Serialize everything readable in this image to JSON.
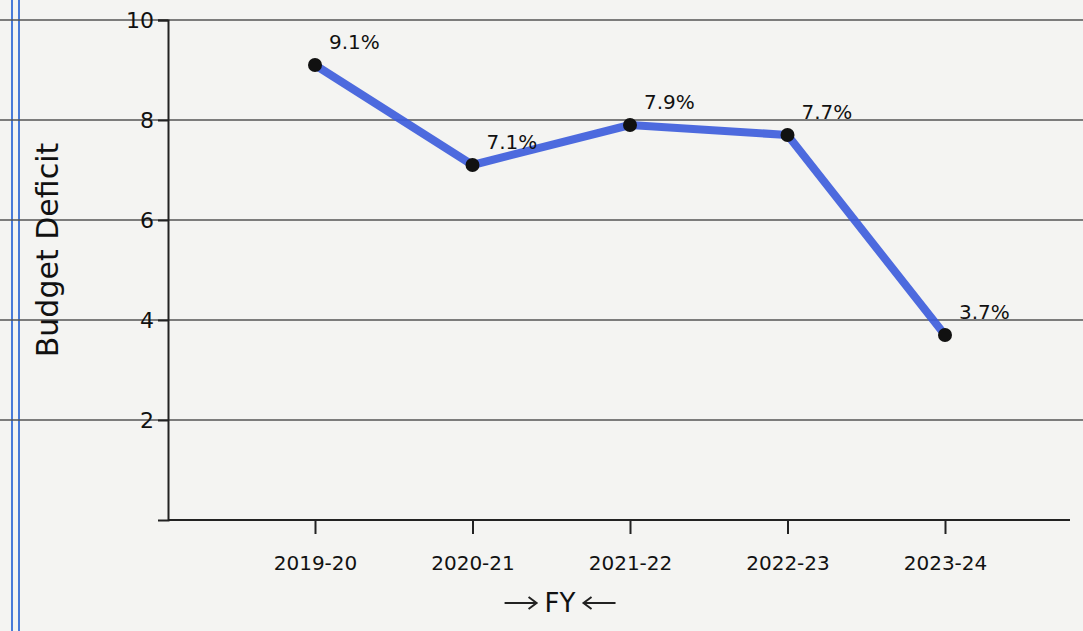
{
  "chart_data": {
    "type": "line",
    "y_label": "Budget Deficit",
    "x_label": "FY",
    "categories": [
      "2019-20",
      "2020-21",
      "2021-22",
      "2022-23",
      "2023-24"
    ],
    "values": [
      9.1,
      7.1,
      7.9,
      7.7,
      3.7
    ],
    "value_labels": [
      "9.1%",
      "7.1%",
      "7.9%",
      "7.7%",
      "3.7%"
    ],
    "color": "#3b5bdb",
    "marker": "circle",
    "ylim": [
      0,
      10
    ],
    "yticks": [
      2,
      4,
      6,
      8,
      10
    ],
    "grid": true,
    "data_labels": true
  }
}
